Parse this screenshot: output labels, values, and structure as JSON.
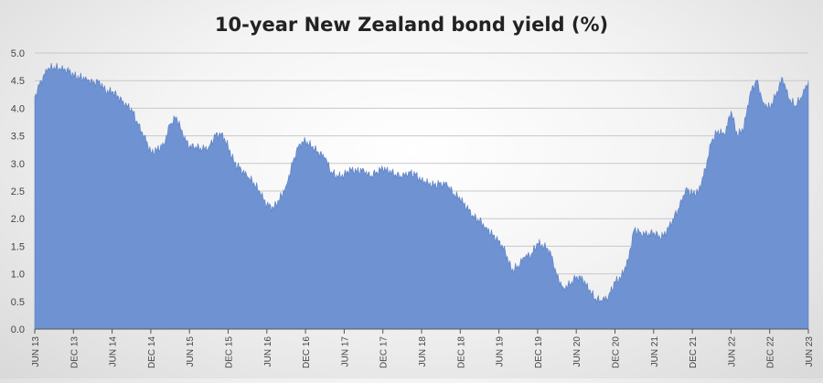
{
  "chart_data": {
    "type": "area",
    "title": "10-year New Zealand bond yield (%)",
    "xlabel": "",
    "ylabel": "",
    "ylim": [
      0,
      5
    ],
    "y_ticks": [
      "0.0",
      "0.5",
      "1.0",
      "1.5",
      "2.0",
      "2.5",
      "3.0",
      "3.5",
      "4.0",
      "4.5",
      "5.0"
    ],
    "x_ticks": [
      "JUN 13",
      "DEC 13",
      "JUN 14",
      "DEC 14",
      "JUN 15",
      "DEC 15",
      "JUN 16",
      "DEC 16",
      "JUN 17",
      "DEC 17",
      "JUN 18",
      "DEC 18",
      "JUN 19",
      "DEC 19",
      "JUN 20",
      "DEC 20",
      "JUN 21",
      "DEC 21",
      "JUN 22",
      "DEC 22",
      "JUN 23"
    ],
    "x_range": [
      "2013-06",
      "2023-06"
    ],
    "grid": true,
    "legend": "none",
    "color": "#6f93d2",
    "series": [
      {
        "x": [
          "2013-06",
          "2013-07",
          "2013-08",
          "2013-09",
          "2013-10",
          "2013-11",
          "2013-12",
          "2014-01",
          "2014-02",
          "2014-03",
          "2014-04",
          "2014-05",
          "2014-06",
          "2014-07",
          "2014-08",
          "2014-09",
          "2014-10",
          "2014-11",
          "2014-12",
          "2015-01",
          "2015-02",
          "2015-03",
          "2015-04",
          "2015-05",
          "2015-06",
          "2015-07",
          "2015-08",
          "2015-09",
          "2015-10",
          "2015-11",
          "2015-12",
          "2016-01",
          "2016-02",
          "2016-03",
          "2016-04",
          "2016-05",
          "2016-06",
          "2016-07",
          "2016-08",
          "2016-09",
          "2016-10",
          "2016-11",
          "2016-12",
          "2017-01",
          "2017-02",
          "2017-03",
          "2017-04",
          "2017-05",
          "2017-06",
          "2017-07",
          "2017-08",
          "2017-09",
          "2017-10",
          "2017-11",
          "2017-12",
          "2018-01",
          "2018-02",
          "2018-03",
          "2018-04",
          "2018-05",
          "2018-06",
          "2018-07",
          "2018-08",
          "2018-09",
          "2018-10",
          "2018-11",
          "2018-12",
          "2019-01",
          "2019-02",
          "2019-03",
          "2019-04",
          "2019-05",
          "2019-06",
          "2019-07",
          "2019-08",
          "2019-09",
          "2019-10",
          "2019-11",
          "2019-12",
          "2020-01",
          "2020-02",
          "2020-03",
          "2020-04",
          "2020-05",
          "2020-06",
          "2020-07",
          "2020-08",
          "2020-09",
          "2020-10",
          "2020-11",
          "2020-12",
          "2021-01",
          "2021-02",
          "2021-03",
          "2021-04",
          "2021-05",
          "2021-06",
          "2021-07",
          "2021-08",
          "2021-09",
          "2021-10",
          "2021-11",
          "2021-12",
          "2022-01",
          "2022-02",
          "2022-03",
          "2022-04",
          "2022-05",
          "2022-06",
          "2022-07",
          "2022-08",
          "2022-09",
          "2022-10",
          "2022-11",
          "2022-12",
          "2023-01",
          "2023-02",
          "2023-03",
          "2023-04",
          "2023-05",
          "2023-06"
        ],
        "values": [
          4.2,
          4.5,
          4.7,
          4.75,
          4.7,
          4.7,
          4.6,
          4.55,
          4.55,
          4.45,
          4.5,
          4.3,
          4.3,
          4.2,
          4.05,
          4.0,
          3.7,
          3.5,
          3.2,
          3.25,
          3.35,
          3.7,
          3.85,
          3.5,
          3.3,
          3.3,
          3.25,
          3.3,
          3.5,
          3.55,
          3.3,
          3.0,
          2.9,
          2.75,
          2.65,
          2.45,
          2.25,
          2.2,
          2.35,
          2.6,
          3.0,
          3.35,
          3.4,
          3.3,
          3.2,
          3.1,
          2.85,
          2.75,
          2.8,
          2.9,
          2.85,
          2.9,
          2.75,
          2.85,
          2.9,
          2.85,
          2.8,
          2.75,
          2.85,
          2.8,
          2.7,
          2.65,
          2.6,
          2.65,
          2.6,
          2.45,
          2.35,
          2.2,
          2.05,
          1.95,
          1.85,
          1.7,
          1.6,
          1.4,
          1.05,
          1.15,
          1.3,
          1.35,
          1.55,
          1.5,
          1.4,
          0.95,
          0.75,
          0.8,
          0.95,
          0.9,
          0.7,
          0.55,
          0.5,
          0.6,
          0.85,
          0.95,
          1.25,
          1.8,
          1.75,
          1.7,
          1.75,
          1.65,
          1.75,
          2.0,
          2.2,
          2.55,
          2.45,
          2.5,
          2.9,
          3.4,
          3.6,
          3.5,
          3.95,
          3.5,
          3.65,
          4.3,
          4.5,
          4.1,
          4.0,
          4.25,
          4.55,
          4.15,
          4.05,
          4.2,
          4.5
        ]
      }
    ]
  }
}
